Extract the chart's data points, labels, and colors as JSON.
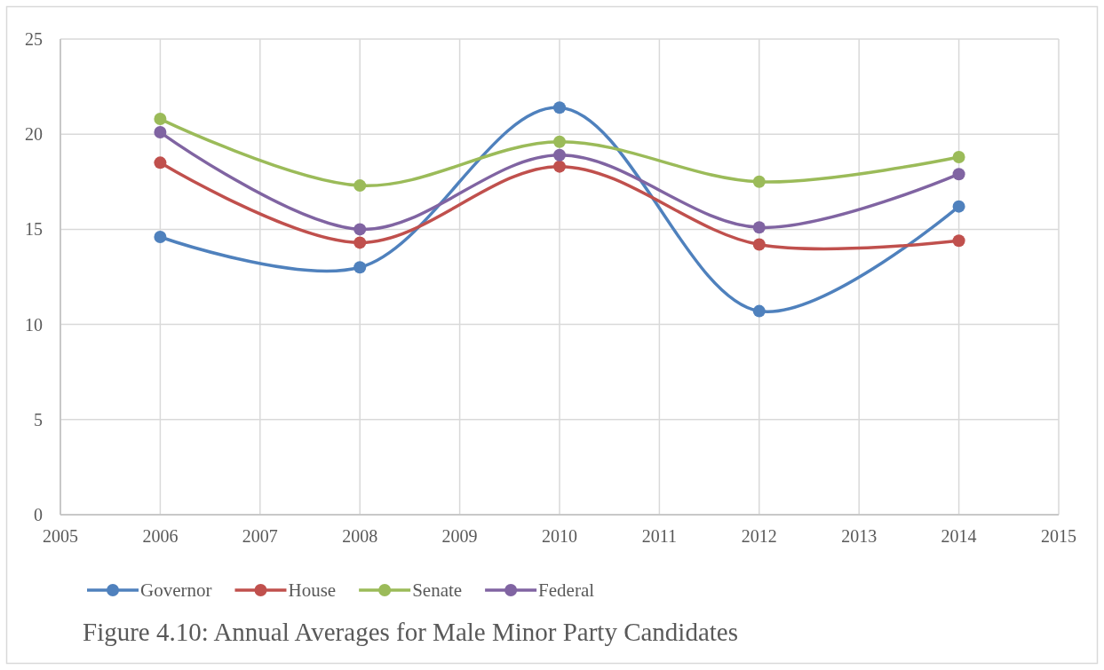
{
  "chart_data": {
    "type": "line",
    "title": "Figure 4.10: Annual Averages for Male Minor Party Candidates",
    "x": [
      2006,
      2008,
      2010,
      2012,
      2014
    ],
    "series": [
      {
        "name": "Governor",
        "color": "#4f81bd",
        "values": [
          14.6,
          13.0,
          21.4,
          10.7,
          16.2
        ]
      },
      {
        "name": "House",
        "color": "#c0504d",
        "values": [
          18.5,
          14.3,
          18.3,
          14.2,
          14.4
        ]
      },
      {
        "name": "Senate",
        "color": "#9bbb59",
        "values": [
          20.8,
          17.3,
          19.6,
          17.5,
          18.8
        ]
      },
      {
        "name": "Federal",
        "color": "#8064a2",
        "values": [
          20.1,
          15.0,
          18.9,
          15.1,
          17.9
        ]
      }
    ],
    "xlim": [
      2005,
      2015
    ],
    "xticks": [
      2005,
      2006,
      2007,
      2008,
      2009,
      2010,
      2011,
      2012,
      2013,
      2014,
      2015
    ],
    "ylim": [
      0,
      25
    ],
    "yticks": [
      0,
      5,
      10,
      15,
      20,
      25
    ],
    "grid": true,
    "legend": "bottom",
    "marker": "circle",
    "line_style": "solid"
  }
}
